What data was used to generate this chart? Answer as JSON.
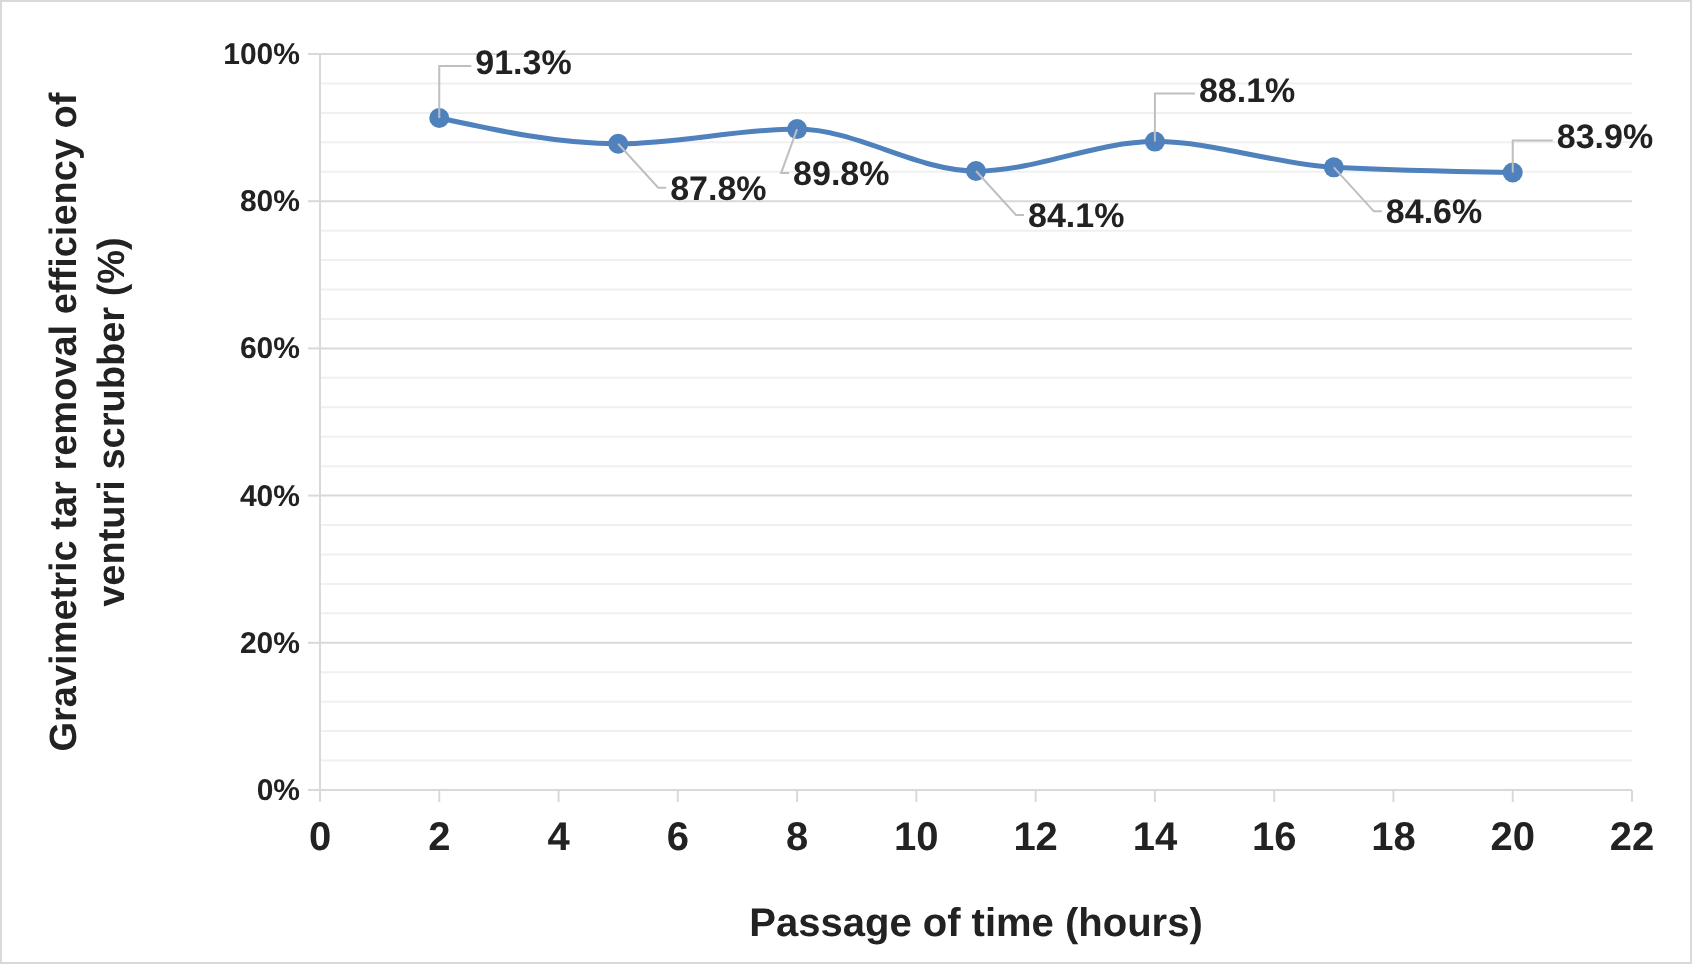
{
  "chart_data": {
    "type": "line",
    "xlabel": "Passage of time (hours)",
    "ylabel": "Gravimetric tar removal efficiency of venturi scrubber (%)",
    "x": [
      2,
      5,
      8,
      11,
      14,
      17,
      20
    ],
    "series": [
      {
        "color": "#4f81bd",
        "values": [
          91.3,
          87.8,
          89.8,
          84.1,
          88.1,
          84.6,
          83.9
        ],
        "value_labels": [
          "91.3%",
          "87.8%",
          "89.8%",
          "84.1%",
          "88.1%",
          "84.6%",
          "83.9%"
        ]
      }
    ],
    "xlim": [
      0,
      22
    ],
    "xticks": [
      0,
      2,
      4,
      6,
      8,
      10,
      12,
      14,
      16,
      18,
      20,
      22
    ],
    "ylim": [
      0,
      100
    ],
    "yticks": [
      {
        "value": 0,
        "label": "0%"
      },
      {
        "value": 4,
        "label": null
      },
      {
        "value": 8,
        "label": null
      },
      {
        "value": 12,
        "label": null
      },
      {
        "value": 16,
        "label": null
      },
      {
        "value": 20,
        "label": "20%"
      },
      {
        "value": 24,
        "label": null
      },
      {
        "value": 28,
        "label": null
      },
      {
        "value": 32,
        "label": null
      },
      {
        "value": 36,
        "label": null
      },
      {
        "value": 40,
        "label": "40%"
      },
      {
        "value": 44,
        "label": null
      },
      {
        "value": 48,
        "label": null
      },
      {
        "value": 52,
        "label": null
      },
      {
        "value": 56,
        "label": null
      },
      {
        "value": 60,
        "label": "60%"
      },
      {
        "value": 64,
        "label": null
      },
      {
        "value": 68,
        "label": null
      },
      {
        "value": 72,
        "label": null
      },
      {
        "value": 76,
        "label": null
      },
      {
        "value": 80,
        "label": "80%"
      },
      {
        "value": 84,
        "label": null
      },
      {
        "value": 88,
        "label": null
      },
      {
        "value": 92,
        "label": null
      },
      {
        "value": 96,
        "label": null
      },
      {
        "value": 100,
        "label": "100%"
      }
    ],
    "grid": "y",
    "marker": "circle",
    "line_style": "solid"
  }
}
